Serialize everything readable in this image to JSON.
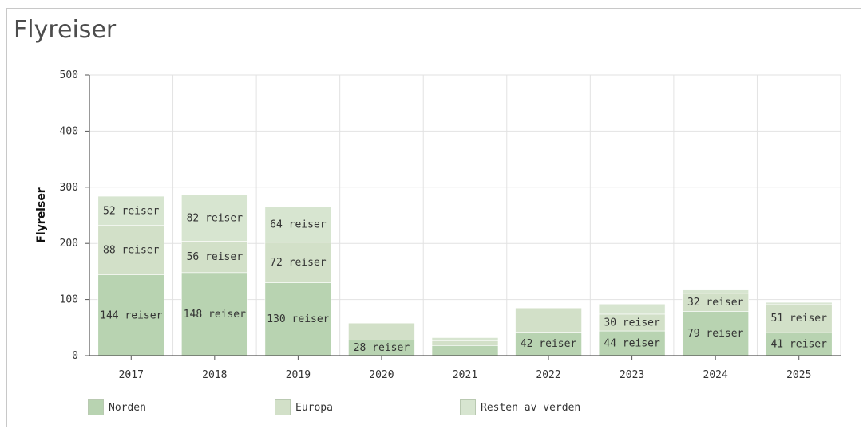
{
  "title": "Flyreiser",
  "colors": {
    "norden": "#b8d3b1",
    "europa": "#d2e0c8",
    "resten": "#d7e5d0",
    "grid": "#e2e2e2",
    "axis": "#555555"
  },
  "chart_data": {
    "type": "bar",
    "stacked": true,
    "categories": [
      "2017",
      "2018",
      "2019",
      "2020",
      "2021",
      "2022",
      "2023",
      "2024",
      "2025"
    ],
    "series": [
      {
        "name": "Norden",
        "values": [
          144,
          148,
          130,
          28,
          18,
          42,
          44,
          79,
          41
        ]
      },
      {
        "name": "Europa",
        "values": [
          88,
          56,
          72,
          30,
          8,
          43,
          30,
          32,
          51
        ]
      },
      {
        "name": "Resten av verden",
        "values": [
          52,
          82,
          64,
          0,
          6,
          0,
          18,
          6,
          3
        ]
      }
    ],
    "data_labels": [
      [
        "144 reiser",
        "148 reiser",
        "130 reiser",
        "28 reiser",
        "",
        "42 reiser",
        "44 reiser",
        "79 reiser",
        "41 reiser"
      ],
      [
        "88 reiser",
        "56 reiser",
        "72 reiser",
        "",
        "",
        "",
        "30 reiser",
        "32 reiser",
        "51 reiser"
      ],
      [
        "52 reiser",
        "82 reiser",
        "64 reiser",
        "",
        "",
        "",
        "",
        "",
        ""
      ]
    ],
    "yticks": [
      "0",
      "100",
      "200",
      "300",
      "400",
      "500"
    ],
    "ylim": [
      0,
      500
    ],
    "ylabel": "Flyreiser",
    "xlabel": "",
    "grid": true,
    "legend_position": "bottom-left"
  }
}
